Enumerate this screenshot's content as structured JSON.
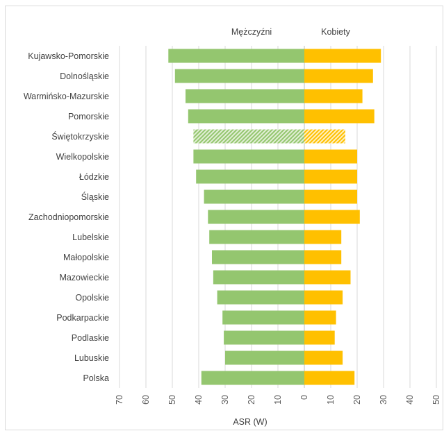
{
  "chart_data": {
    "type": "bar",
    "orientation": "horizontal-butterfly",
    "series_headers": {
      "left": "Mężczyźni",
      "right": "Kobiety"
    },
    "xlabel": "ASR (W)",
    "xlim": [
      -70,
      50
    ],
    "x_ticks": [
      -70,
      -60,
      -50,
      -40,
      -30,
      -20,
      -10,
      0,
      10,
      20,
      30,
      40,
      50
    ],
    "x_tick_labels": [
      "70",
      "60",
      "50",
      "40",
      "30",
      "20",
      "10",
      "0",
      "10",
      "20",
      "30",
      "40",
      "50"
    ],
    "grid": true,
    "colors": {
      "men": "#94c66f",
      "women": "#ffc000",
      "grid": "#d9d9d9"
    },
    "highlighted_category": "Świętokrzyskie",
    "categories": [
      "Kujawsko-Pomorskie",
      "Dolnośląskie",
      "Warmińsko-Mazurskie",
      "Pomorskie",
      "Świętokrzyskie",
      "Wielkopolskie",
      "Łódzkie",
      "Śląskie",
      "Zachodniopomorskie",
      "Lubelskie",
      "Małopolskie",
      "Mazowieckie",
      "Opolskie",
      "Podkarpackie",
      "Podlaskie",
      "Lubuskie",
      "Polska"
    ],
    "series": [
      {
        "name": "Mężczyźni",
        "values": [
          51.5,
          49,
          45,
          44,
          42,
          42,
          41,
          38,
          36.5,
          36,
          35,
          34.5,
          33,
          31,
          30.5,
          30,
          39
        ]
      },
      {
        "name": "Kobiety",
        "values": [
          29,
          26,
          22,
          26.5,
          15.5,
          20,
          20,
          20,
          21,
          14,
          14,
          17.5,
          14.5,
          12,
          11.5,
          14.5,
          19
        ]
      }
    ]
  }
}
